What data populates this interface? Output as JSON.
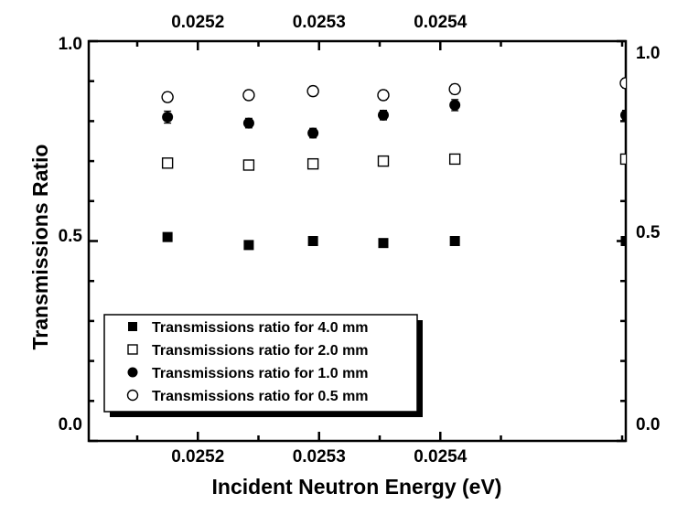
{
  "chart_data": {
    "type": "scatter",
    "title": "",
    "xlabel": "Incident Neutron Energy (eV)",
    "ylabel": "Transmissions Ratio",
    "xlim": [
      0.02511,
      0.025553
    ],
    "ylim": [
      0.0,
      1.0
    ],
    "x_ticks": [
      {
        "value": 0.0252,
        "label": "0.0252"
      },
      {
        "value": 0.0253,
        "label": "0.0253"
      },
      {
        "value": 0.0254,
        "label": "0.0254"
      }
    ],
    "y_ticks_left": [
      {
        "value": 0.0,
        "label": "0.0"
      },
      {
        "value": 0.5,
        "label": "0.5"
      },
      {
        "value": 1.0,
        "label": "1.0"
      }
    ],
    "y_ticks_right": [
      {
        "value": 0.0,
        "label": "0.0"
      },
      {
        "value": 0.5,
        "label": "0.5"
      },
      {
        "value": 1.0,
        "label": "1.0"
      }
    ],
    "grid": false,
    "legend_position": "bottom-left",
    "series": [
      {
        "name": "Transmissions ratio for 4.0 mm",
        "marker": "filled-square",
        "x": [
          0.025175,
          0.025242,
          0.025295,
          0.025353,
          0.025412,
          0.025553
        ],
        "y": [
          0.51,
          0.49,
          0.5,
          0.495,
          0.5,
          0.5
        ],
        "err": [
          0,
          0,
          0,
          0,
          0,
          0
        ]
      },
      {
        "name": "Transmissions ratio for 2.0 mm",
        "marker": "open-square",
        "x": [
          0.025175,
          0.025242,
          0.025295,
          0.025353,
          0.025412,
          0.025553
        ],
        "y": [
          0.695,
          0.69,
          0.693,
          0.7,
          0.705,
          0.705
        ],
        "err": [
          0.008,
          0.005,
          0.005,
          0.005,
          0.005,
          0.005
        ]
      },
      {
        "name": "Transmissions ratio for 1.0 mm",
        "marker": "filled-circle",
        "x": [
          0.025175,
          0.025242,
          0.025295,
          0.025353,
          0.025412,
          0.025553
        ],
        "y": [
          0.81,
          0.795,
          0.77,
          0.815,
          0.84,
          0.815
        ],
        "err": [
          0.015,
          0.012,
          0.012,
          0.012,
          0.014,
          0.012
        ]
      },
      {
        "name": "Transmissions ratio for 0.5 mm",
        "marker": "open-circle",
        "x": [
          0.025175,
          0.025242,
          0.025295,
          0.025353,
          0.025412,
          0.025553
        ],
        "y": [
          0.86,
          0.865,
          0.875,
          0.865,
          0.88,
          0.895
        ],
        "err": [
          0.012,
          0.012,
          0.012,
          0.012,
          0.012,
          0.012
        ]
      }
    ]
  }
}
